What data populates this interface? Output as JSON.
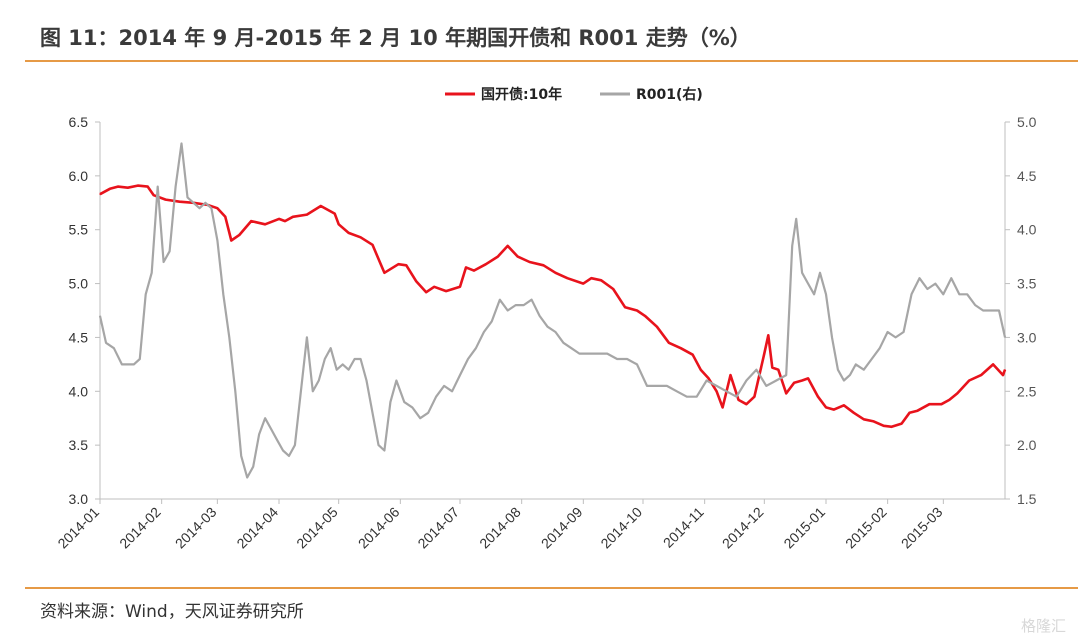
{
  "header": {
    "title": "图 11：2014 年 9 月-2015 年 2 月 10 年期国开债和 R001 走势（%）"
  },
  "footer": {
    "source": "资料来源：Wind，天风证券研究所",
    "watermark": "格隆汇"
  },
  "chart_data": {
    "type": "line",
    "title": "图 11：2014 年 9 月-2015 年 2 月 10 年期国开债和 R001 走势（%）",
    "grid": false,
    "legend_position": "top-center",
    "x_ticks": [
      "2014-01",
      "2014-02",
      "2014-03",
      "2014-04",
      "2014-05",
      "2014-06",
      "2014-07",
      "2014-08",
      "2014-09",
      "2014-10",
      "2014-11",
      "2014-12",
      "2015-01",
      "2015-02",
      "2015-03"
    ],
    "y_left": {
      "ylim": [
        3.0,
        6.5
      ],
      "ticks": [
        "3.0",
        "3.5",
        "4.0",
        "4.5",
        "5.0",
        "5.5",
        "6.0",
        "6.5"
      ]
    },
    "y_right": {
      "ylim": [
        1.5,
        5.0
      ],
      "ticks": [
        "1.5",
        "2.0",
        "2.5",
        "3.0",
        "3.5",
        "4.0",
        "4.5",
        "5.0"
      ]
    },
    "series": [
      {
        "name": "国开债:10年",
        "axis": "left",
        "color": "#e8131c",
        "x": [
          "2014-01-01",
          "2014-01-06",
          "2014-01-10",
          "2014-01-15",
          "2014-01-20",
          "2014-01-25",
          "2014-01-28",
          "2014-02-03",
          "2014-02-10",
          "2014-02-17",
          "2014-02-24",
          "2014-03-01",
          "2014-03-05",
          "2014-03-08",
          "2014-03-12",
          "2014-03-18",
          "2014-03-25",
          "2014-04-01",
          "2014-04-04",
          "2014-04-08",
          "2014-04-15",
          "2014-04-22",
          "2014-04-29",
          "2014-05-01",
          "2014-05-06",
          "2014-05-12",
          "2014-05-18",
          "2014-05-24",
          "2014-05-31",
          "2014-06-04",
          "2014-06-09",
          "2014-06-14",
          "2014-06-18",
          "2014-06-24",
          "2014-07-01",
          "2014-07-04",
          "2014-07-08",
          "2014-07-14",
          "2014-07-20",
          "2014-07-25",
          "2014-07-30",
          "2014-08-05",
          "2014-08-12",
          "2014-08-18",
          "2014-08-24",
          "2014-09-01",
          "2014-09-05",
          "2014-09-10",
          "2014-09-16",
          "2014-09-22",
          "2014-09-28",
          "2014-10-02",
          "2014-10-08",
          "2014-10-14",
          "2014-10-20",
          "2014-10-26",
          "2014-10-30",
          "2014-11-03",
          "2014-11-07",
          "2014-11-10",
          "2014-11-14",
          "2014-11-18",
          "2014-11-22",
          "2014-11-26",
          "2014-12-01",
          "2014-12-03",
          "2014-12-05",
          "2014-12-08",
          "2014-12-12",
          "2014-12-16",
          "2014-12-20",
          "2014-12-23",
          "2014-12-28",
          "2015-01-01",
          "2015-01-05",
          "2015-01-10",
          "2015-01-15",
          "2015-01-20",
          "2015-01-25",
          "2015-01-30",
          "2015-02-03",
          "2015-02-08",
          "2015-02-12",
          "2015-02-16",
          "2015-02-22",
          "2015-02-28",
          "2015-03-04",
          "2015-03-08",
          "2015-03-14",
          "2015-03-20",
          "2015-03-26",
          "2015-03-31",
          "2015-04-01"
        ],
        "values": [
          5.83,
          5.88,
          5.9,
          5.89,
          5.91,
          5.9,
          5.82,
          5.78,
          5.76,
          5.75,
          5.73,
          5.7,
          5.62,
          5.4,
          5.45,
          5.58,
          5.55,
          5.6,
          5.58,
          5.62,
          5.64,
          5.72,
          5.65,
          5.55,
          5.47,
          5.43,
          5.36,
          5.1,
          5.18,
          5.17,
          5.02,
          4.92,
          4.97,
          4.93,
          4.97,
          5.15,
          5.12,
          5.18,
          5.25,
          5.35,
          5.25,
          5.2,
          5.17,
          5.1,
          5.05,
          5.0,
          5.05,
          5.03,
          4.95,
          4.78,
          4.75,
          4.7,
          4.6,
          4.45,
          4.4,
          4.34,
          4.2,
          4.12,
          4.0,
          3.85,
          4.15,
          3.92,
          3.88,
          3.95,
          4.35,
          4.52,
          4.22,
          4.2,
          3.98,
          4.08,
          4.1,
          4.12,
          3.95,
          3.85,
          3.83,
          3.87,
          3.8,
          3.74,
          3.72,
          3.68,
          3.67,
          3.7,
          3.8,
          3.82,
          3.88,
          3.88,
          3.92,
          3.98,
          4.1,
          4.15,
          4.25,
          4.15,
          4.2
        ]
      },
      {
        "name": "R001(右)",
        "axis": "right",
        "color": "#a6a6a6",
        "x": [
          "2014-01-01",
          "2014-01-04",
          "2014-01-08",
          "2014-01-12",
          "2014-01-15",
          "2014-01-18",
          "2014-01-21",
          "2014-01-24",
          "2014-01-27",
          "2014-01-30",
          "2014-02-02",
          "2014-02-05",
          "2014-02-08",
          "2014-02-11",
          "2014-02-14",
          "2014-02-17",
          "2014-02-20",
          "2014-02-23",
          "2014-02-26",
          "2014-03-01",
          "2014-03-04",
          "2014-03-07",
          "2014-03-10",
          "2014-03-13",
          "2014-03-16",
          "2014-03-19",
          "2014-03-22",
          "2014-03-25",
          "2014-03-28",
          "2014-03-31",
          "2014-04-03",
          "2014-04-06",
          "2014-04-09",
          "2014-04-12",
          "2014-04-15",
          "2014-04-18",
          "2014-04-21",
          "2014-04-24",
          "2014-04-27",
          "2014-04-30",
          "2014-05-03",
          "2014-05-06",
          "2014-05-09",
          "2014-05-12",
          "2014-05-15",
          "2014-05-18",
          "2014-05-21",
          "2014-05-24",
          "2014-05-27",
          "2014-05-30",
          "2014-06-03",
          "2014-06-07",
          "2014-06-11",
          "2014-06-15",
          "2014-06-19",
          "2014-06-23",
          "2014-06-27",
          "2014-07-01",
          "2014-07-05",
          "2014-07-09",
          "2014-07-13",
          "2014-07-17",
          "2014-07-21",
          "2014-07-25",
          "2014-07-29",
          "2014-08-02",
          "2014-08-06",
          "2014-08-10",
          "2014-08-14",
          "2014-08-18",
          "2014-08-22",
          "2014-08-26",
          "2014-08-30",
          "2014-09-03",
          "2014-09-08",
          "2014-09-13",
          "2014-09-18",
          "2014-09-23",
          "2014-09-28",
          "2014-10-03",
          "2014-10-08",
          "2014-10-13",
          "2014-10-18",
          "2014-10-23",
          "2014-10-28",
          "2014-11-02",
          "2014-11-07",
          "2014-11-12",
          "2014-11-17",
          "2014-11-22",
          "2014-11-27",
          "2014-12-02",
          "2014-12-07",
          "2014-12-12",
          "2014-12-15",
          "2014-12-17",
          "2014-12-20",
          "2014-12-23",
          "2014-12-26",
          "2014-12-29",
          "2015-01-01",
          "2015-01-04",
          "2015-01-07",
          "2015-01-10",
          "2015-01-13",
          "2015-01-16",
          "2015-01-20",
          "2015-01-24",
          "2015-01-28",
          "2015-02-01",
          "2015-02-05",
          "2015-02-09",
          "2015-02-13",
          "2015-02-17",
          "2015-02-21",
          "2015-02-25",
          "2015-03-01",
          "2015-03-05",
          "2015-03-09",
          "2015-03-13",
          "2015-03-17",
          "2015-03-21",
          "2015-03-25",
          "2015-03-29",
          "2015-04-01"
        ],
        "values": [
          3.2,
          2.95,
          2.9,
          2.75,
          2.75,
          2.75,
          2.8,
          3.4,
          3.6,
          4.4,
          3.7,
          3.8,
          4.4,
          4.8,
          4.3,
          4.25,
          4.2,
          4.25,
          4.2,
          3.9,
          3.4,
          3.0,
          2.5,
          1.9,
          1.7,
          1.8,
          2.1,
          2.25,
          2.15,
          2.05,
          1.95,
          1.9,
          2.0,
          2.5,
          3.0,
          2.5,
          2.6,
          2.8,
          2.9,
          2.7,
          2.75,
          2.7,
          2.8,
          2.8,
          2.6,
          2.3,
          2.0,
          1.95,
          2.4,
          2.6,
          2.4,
          2.35,
          2.25,
          2.3,
          2.45,
          2.55,
          2.5,
          2.65,
          2.8,
          2.9,
          3.05,
          3.15,
          3.35,
          3.25,
          3.3,
          3.3,
          3.35,
          3.2,
          3.1,
          3.05,
          2.95,
          2.9,
          2.85,
          2.85,
          2.85,
          2.85,
          2.8,
          2.8,
          2.75,
          2.55,
          2.55,
          2.55,
          2.5,
          2.45,
          2.45,
          2.6,
          2.55,
          2.5,
          2.45,
          2.6,
          2.7,
          2.55,
          2.6,
          2.65,
          3.85,
          4.1,
          3.6,
          3.5,
          3.4,
          3.6,
          3.4,
          3.0,
          2.7,
          2.6,
          2.65,
          2.75,
          2.7,
          2.8,
          2.9,
          3.05,
          3.0,
          3.05,
          3.4,
          3.55,
          3.45,
          3.5,
          3.4,
          3.55,
          3.4,
          3.4,
          3.3,
          3.25,
          3.25,
          3.25,
          3.0
        ]
      }
    ]
  }
}
